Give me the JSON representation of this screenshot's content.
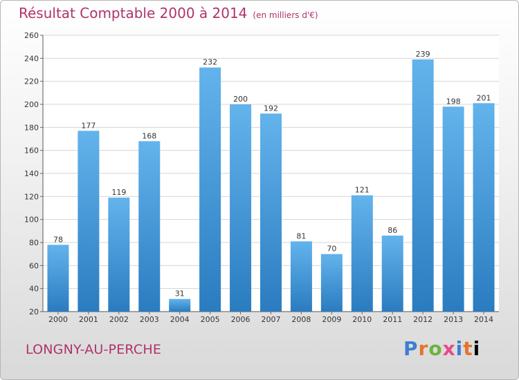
{
  "header": {
    "title": "Résultat Comptable 2000 à 2014",
    "unit": "(en milliers d'€)"
  },
  "footer": {
    "town": "LONGNY-AU-PERCHE",
    "logo_letters": [
      "P",
      "r",
      "o",
      "x",
      "i",
      "t",
      "i"
    ]
  },
  "colors": {
    "title": "#b0336b",
    "bar_top": "#63b3ec",
    "bar_bottom": "#2a7cc0"
  },
  "chart_data": {
    "type": "bar",
    "title": "Résultat Comptable 2000 à 2014",
    "categories": [
      "2000",
      "2001",
      "2002",
      "2003",
      "2004",
      "2005",
      "2006",
      "2007",
      "2008",
      "2009",
      "2010",
      "2011",
      "2012",
      "2013",
      "2014"
    ],
    "values": [
      78,
      177,
      119,
      168,
      31,
      232,
      200,
      192,
      81,
      70,
      121,
      86,
      239,
      198,
      201
    ],
    "ylim": [
      20,
      260
    ],
    "yticks": [
      20,
      40,
      60,
      80,
      100,
      120,
      140,
      160,
      180,
      200,
      220,
      240,
      260
    ],
    "grid": true,
    "legend": "none"
  }
}
